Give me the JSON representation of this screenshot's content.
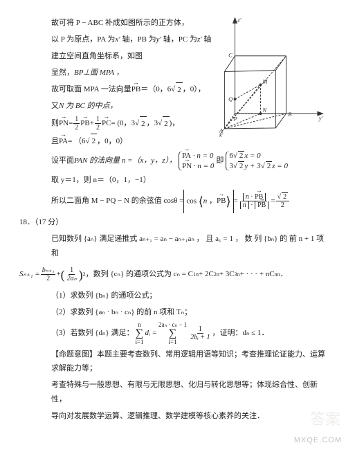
{
  "p17": {
    "l1": "故可将 P − ABC 补成如图所示的正方体，",
    "l2_a": "以 P 为原点，PA 为",
    "l2_b": " 轴，PB 为",
    "l2_c": " 轴，PC 为",
    "l2_d": " 轴",
    "l2_x": "x′",
    "l2_y": "y′",
    "l2_z": "z′",
    "l3": "建立空间直角坐标系，如图",
    "l4_a": "显然，",
    "l4_b": "BP⊥面 MPA ，",
    "l5_a": "故可取面 MPA 一法向量",
    "l5_vec": "PB",
    "l5_b": "＝（0，6",
    "l5_c": "，0），",
    "sqrt2": "2",
    "l6_a": "又",
    "l6_b": "N 为 BC 的中点，",
    "l7_a": "则",
    "l7_vec1": "PN",
    "l7_eq": " = ",
    "l7_f1n": "1",
    "l7_f1d": "2",
    "l7_v2": "PB",
    "l7_plus": " + ",
    "l7_f2n": "1",
    "l7_f2d": "2",
    "l7_v3": "PC",
    "l7_b": " = (0，3",
    "l7_c": "，3",
    "l7_d": ")，",
    "l8_a": "且",
    "l8_vec": "PA",
    "l8_b": " = （6",
    "l8_c": "，0，0）",
    "l9_a": "设平面 ",
    "l9_b": "PAN 的法向量 n =（x，y，z），",
    "l9_b1v": "PA",
    "l9_b1": " · n = 0",
    "l9_b2v": "PN",
    "l9_b2": " · n = 0",
    "l9_c": "即",
    "l9_c1": "6",
    "l9_c1b": "x = 0",
    "l9_c2": "3",
    "l9_c2b": "y + 3",
    "l9_c2c": "z = 0",
    "l10_a": "取 y＝1，则 n＝（0，1，−1）",
    "l11_a": "所以二面角 M − PQ − N 的余弦值 cosθ = ",
    "l11_b": "cos",
    "l11_vec": "PB",
    "l11_eq": " = ",
    "l11_topv": "PB",
    "l11_botv": "PB",
    "l11_res_n": "2",
    "l11_res_d": "2"
  },
  "p18": {
    "num": "18．（17 分）",
    "l1_a": "已知数列 {aₙ} 满足递推式 aₙ₊₁ = aₙ − aₙ₊₁aₙ ， 且 a₁ = 1 ， 数 列 {bₙ} 的 前 n + 1 项 和",
    "l2_a": "Sₙ₊₁ = ",
    "l2_f1n": "bₙ₊₁",
    "l2_f1d": "2",
    "l2_plus": " + ",
    "l2_p_a": "1",
    "l2_p_b": "2aₙ",
    "l2_exp": "2",
    "l2_b": "，数列 {cₙ} 的通项公式为 cₙ = C",
    "l2_c": " + 2C",
    "l2_d": " + 3C",
    "l2_e": " + · · · + nC",
    "l2_f": "．",
    "l2_s1": "1",
    "l2_s2": "2",
    "l2_s3": "3",
    "l2_sn": "n",
    "l2_sub": "n",
    "q1": "（1）求数列 {bₙ} 的通项公式；",
    "q2": "（2）求数列 {aₙ · bₙ · cₙ} 的前 n 项和 Tₙ；",
    "q3_a": "（3）若数列 {dₙ} 满足：",
    "q3_sum_top": "n",
    "q3_sum_bot": "i=1",
    "q3_di": " dᵢ = ",
    "q3_s2_top": "2aₙ · cₙ − 1",
    "q3_s2_bot": "i=1",
    "q3_f_n": "1",
    "q3_f_d": "2bᵢ + 1",
    "q3_b": "，证明：dₙ ≤ 1．",
    "comment_h": "【命题意图】",
    "comment_1": "本题主要考查数列、常用逻辑用语等知识；考查推理论证能力、运算求解能力等；",
    "comment_2": "考查特殊与一般思想、有限与无限思想、化归与转化思想等；体现综合性、创新性，",
    "comment_3": "导向对发展数学运算、逻辑推理、数学建模等核心素养的关注．"
  },
  "figure": {
    "axes": {
      "x": "x′",
      "y": "y′",
      "z": "z′"
    },
    "labels": {
      "P": "P",
      "A": "A",
      "B": "B",
      "C": "C",
      "M": "M",
      "N": "N",
      "Q": "Q"
    },
    "stroke": "#333333",
    "dash": "3,2",
    "points": {
      "P": [
        22,
        150
      ],
      "B": [
        100,
        150
      ],
      "A": [
        6,
        173
      ],
      "Bf": [
        84,
        172
      ],
      "C": [
        22,
        62
      ],
      "Ct": [
        100,
        62
      ],
      "Af": [
        6,
        86
      ],
      "Bt": [
        84,
        84
      ],
      "M": [
        61,
        106
      ],
      "N": [
        61,
        150
      ],
      "Q": [
        22,
        128
      ]
    }
  },
  "watermarks": {
    "wm1": "答案",
    "wm2": "MXQE.COM"
  }
}
